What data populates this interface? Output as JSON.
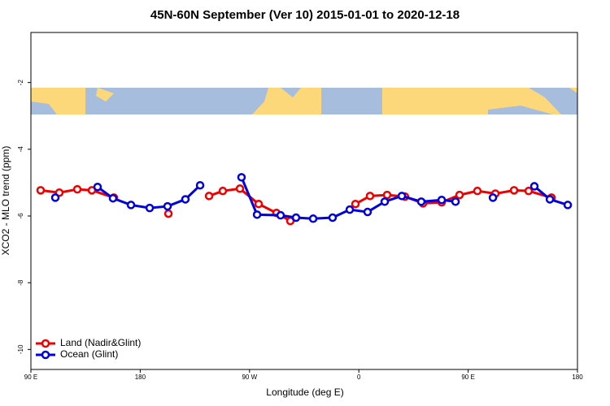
{
  "chart_data": {
    "type": "line",
    "title": "45N-60N September (Ver 10)   2015-01-01 to 2020-12-18",
    "x_label": "Longitude (deg E)",
    "y_label": "XCO2 - MLO trend (ppm)",
    "xlim": [
      90,
      540
    ],
    "xticks": [
      {
        "value": 90,
        "label": "90 E"
      },
      {
        "value": 180,
        "label": "180"
      },
      {
        "value": 270,
        "label": "90 W"
      },
      {
        "value": 360,
        "label": "0"
      },
      {
        "value": 450,
        "label": "90 E"
      },
      {
        "value": 540,
        "label": "180"
      }
    ],
    "ylim": [
      -10.6,
      -0.5
    ],
    "yticks": [
      -2,
      -4,
      -6,
      -8,
      -10
    ],
    "legend": "bottom-left",
    "series": [
      {
        "name": "Land (Nadir&Glint)",
        "color": "#ee0000",
        "x": [
          98.0,
          113.4,
          128.2,
          140.2,
          158.3,
          null,
          203.2,
          null,
          236.7,
          248.0,
          262.1,
          277.5,
          292.2,
          303.6,
          null,
          357.2,
          369.2,
          383.3,
          398.0,
          412.8,
          428.2,
          442.9,
          457.6,
          472.4,
          487.8,
          499.8,
          518.6
        ],
        "values": [
          -5.23,
          -5.3,
          -5.2,
          -5.23,
          -5.45,
          null,
          -5.93,
          null,
          -5.4,
          -5.25,
          -5.18,
          -5.64,
          -5.91,
          -6.15,
          null,
          -5.64,
          -5.4,
          -5.37,
          -5.42,
          -5.62,
          -5.59,
          -5.37,
          -5.25,
          -5.33,
          -5.23,
          -5.25,
          -5.45
        ]
      },
      {
        "name": "Ocean (Glint)",
        "color": "#0000dd",
        "x": [
          110.1,
          null,
          144.9,
          157.6,
          172.4,
          187.8,
          202.5,
          217.2,
          229.3,
          null,
          263.4,
          276.2,
          295.6,
          308.3,
          322.4,
          338.4,
          352.5,
          367.2,
          381.3,
          395.4,
          411.4,
          428.2,
          439.6,
          null,
          470.4,
          null,
          504.5,
          517.3,
          532.0
        ],
        "values": [
          -5.45,
          null,
          -5.13,
          -5.47,
          -5.67,
          -5.76,
          -5.71,
          -5.5,
          -5.08,
          null,
          -4.84,
          -5.96,
          -5.98,
          -6.05,
          -6.08,
          -6.05,
          -5.81,
          -5.88,
          -5.57,
          -5.4,
          -5.57,
          -5.52,
          -5.57,
          null,
          -5.45,
          null,
          -5.11,
          -5.5,
          -5.67
        ]
      }
    ]
  }
}
